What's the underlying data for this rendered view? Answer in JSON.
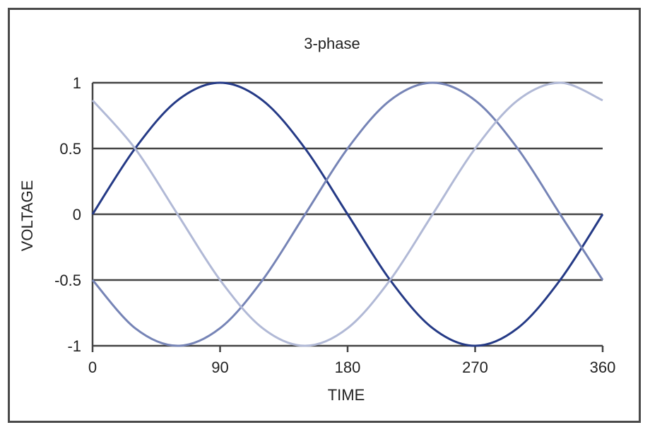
{
  "chart_data": {
    "type": "line",
    "title": "3-phase",
    "xlabel": "TIME",
    "ylabel": "VOLTAGE",
    "xlim": [
      0,
      360
    ],
    "ylim": [
      -1,
      1
    ],
    "x_ticks": [
      0,
      90,
      180,
      270,
      360
    ],
    "x_tick_labels": [
      "0",
      "90",
      "180",
      "270",
      "360"
    ],
    "y_ticks": [
      1,
      0.5,
      0,
      -0.5,
      -1
    ],
    "y_tick_labels": [
      "1",
      "0.5",
      "0",
      "-0.5",
      "-1"
    ],
    "grid": "horizontal",
    "legend": "none",
    "x": [
      0,
      30,
      60,
      90,
      120,
      150,
      180,
      210,
      240,
      270,
      300,
      330,
      360
    ],
    "series": [
      {
        "color": "#253a86",
        "values": [
          0,
          0.5,
          0.866,
          1,
          0.866,
          0.5,
          0,
          -0.5,
          -0.866,
          -1,
          -0.866,
          -0.5,
          0
        ]
      },
      {
        "color": "#7684b6",
        "values": [
          -0.5,
          -0.866,
          -1,
          -0.866,
          -0.5,
          0,
          0.5,
          0.866,
          1,
          0.866,
          0.5,
          0,
          -0.5
        ]
      },
      {
        "color": "#b1b9d6",
        "values": [
          0.866,
          0.5,
          0,
          -0.5,
          -0.866,
          -1,
          -0.866,
          -0.5,
          0,
          0.5,
          0.866,
          1,
          0.866
        ]
      }
    ]
  }
}
